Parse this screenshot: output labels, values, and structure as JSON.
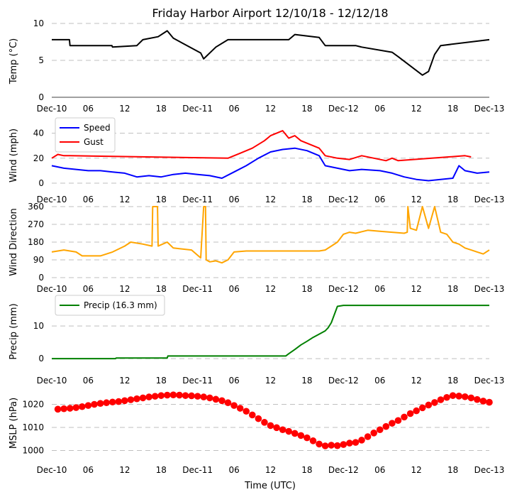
{
  "chart_data": [
    {
      "type": "line",
      "title": "Friday Harbor Airport 12/10/18 - 12/12/18",
      "ylabel": "Temp (°C)",
      "ylim": [
        0,
        10
      ],
      "yticks": [
        "0",
        "5",
        "10"
      ],
      "xtick_labels": [
        "Dec-10",
        "06",
        "12",
        "18",
        "Dec-11",
        "06",
        "12",
        "18",
        "Dec-12",
        "06",
        "12",
        "18",
        "Dec-13"
      ],
      "series": [
        {
          "name": "Temp",
          "color": "#000000",
          "x": [
            0,
            2.9,
            3,
            9.9,
            10,
            14,
            15,
            17.5,
            19,
            20,
            24.5,
            25,
            27,
            29,
            30,
            39,
            40,
            44,
            45,
            50,
            51,
            56,
            57,
            61,
            62,
            63,
            64,
            72
          ],
          "y": [
            7.8,
            7.8,
            7,
            7,
            6.8,
            7,
            7.8,
            8.2,
            9,
            8,
            6,
            5.2,
            6.8,
            7.8,
            7.8,
            7.8,
            8.5,
            8.1,
            7,
            7,
            6.8,
            6.1,
            5.5,
            3,
            3.5,
            5.8,
            7,
            7.8
          ]
        }
      ]
    },
    {
      "type": "line",
      "ylabel": "Wind (mph)",
      "ylim": [
        0,
        50
      ],
      "yticks": [
        "0",
        "20",
        "40"
      ],
      "xtick_labels": [
        "Dec-10",
        "06",
        "12",
        "18",
        "Dec-11",
        "06",
        "12",
        "18",
        "Dec-12",
        "06",
        "12",
        "18",
        "Dec-13"
      ],
      "legend": "top-left",
      "series": [
        {
          "name": "Speed",
          "color": "#0000ff",
          "x": [
            0,
            2,
            4,
            6,
            8,
            10,
            12,
            14,
            16,
            18,
            20,
            22,
            24,
            26,
            28,
            30,
            32,
            34,
            36,
            38,
            40,
            42,
            44,
            45,
            47,
            49,
            51,
            54,
            56,
            58,
            60,
            62,
            64,
            66,
            67,
            68,
            70,
            72
          ],
          "y": [
            14,
            12,
            11,
            10,
            10,
            9,
            8,
            5,
            6,
            5,
            7,
            8,
            7,
            6,
            4,
            9,
            14,
            20,
            25,
            27,
            28,
            26,
            22,
            14,
            12,
            10,
            11,
            10,
            8,
            5,
            3,
            2,
            3,
            4,
            14,
            10,
            8,
            9
          ]
        },
        {
          "name": "Gust",
          "color": "#ff0000",
          "x": [
            0,
            1,
            2,
            3,
            29,
            31,
            33,
            35,
            36,
            37,
            38,
            39,
            40,
            41,
            42,
            43,
            44,
            45,
            47,
            49,
            51,
            53,
            55,
            56,
            57,
            68,
            69
          ],
          "y": [
            20,
            23,
            22,
            22,
            20,
            24,
            28,
            34,
            38,
            40,
            42,
            36,
            38,
            34,
            32,
            30,
            28,
            22,
            20,
            19,
            22,
            20,
            18,
            20,
            18,
            22,
            21
          ]
        }
      ]
    },
    {
      "type": "line",
      "ylabel": "Wind Direction",
      "ylim": [
        0,
        360
      ],
      "yticks": [
        "0",
        "90",
        "180",
        "270",
        "360"
      ],
      "xtick_labels": [
        "Dec-10",
        "06",
        "12",
        "18",
        "Dec-11",
        "06",
        "12",
        "18",
        "Dec-12",
        "06",
        "12",
        "18",
        "Dec-13"
      ],
      "series": [
        {
          "name": "Direction",
          "color": "#ffa500",
          "x": [
            0,
            2,
            4,
            5,
            8,
            10,
            12,
            13,
            15,
            16.5,
            16.6,
            17.4,
            17.5,
            19,
            20,
            23,
            24.5,
            25,
            25.3,
            25.4,
            26,
            27,
            28,
            29,
            30,
            32,
            35,
            40,
            44,
            45,
            46,
            47,
            48,
            49,
            50,
            52,
            54,
            56,
            58,
            58.5,
            58.6,
            59,
            60,
            61,
            62,
            63,
            64,
            65,
            66,
            67,
            68,
            69,
            70,
            71,
            72
          ],
          "y": [
            130,
            140,
            130,
            110,
            110,
            130,
            160,
            180,
            170,
            160,
            360,
            360,
            160,
            180,
            150,
            140,
            100,
            360,
            360,
            90,
            80,
            85,
            75,
            90,
            130,
            135,
            135,
            135,
            135,
            140,
            160,
            180,
            220,
            230,
            225,
            240,
            235,
            230,
            225,
            230,
            360,
            250,
            240,
            360,
            250,
            360,
            230,
            220,
            180,
            170,
            150,
            140,
            130,
            120,
            140
          ]
        }
      ]
    },
    {
      "type": "line",
      "ylabel": "Precip (mm)",
      "ylim": [
        -1.5,
        18.5
      ],
      "yticks": [
        "0",
        "10"
      ],
      "xtick_labels": [
        "Dec-10",
        "06",
        "12",
        "18",
        "Dec-11",
        "06",
        "12",
        "18",
        "Dec-12",
        "06",
        "12",
        "18",
        "Dec-13"
      ],
      "legend": "top-left",
      "series": [
        {
          "name": "Precip (16.3 mm)",
          "color": "#008000",
          "x": [
            0,
            10.5,
            10.6,
            19,
            19.1,
            38.5,
            39,
            40,
            41,
            42,
            43,
            44,
            45,
            45.5,
            46,
            47,
            48,
            72
          ],
          "y": [
            0,
            0,
            0.2,
            0.2,
            0.8,
            0.8,
            1.5,
            2.8,
            4.2,
            5.3,
            6.5,
            7.5,
            8.5,
            9.5,
            11,
            16,
            16.3,
            16.3
          ]
        }
      ]
    },
    {
      "type": "scatter",
      "ylabel": "MSLP (hPa)",
      "xlabel": "Time (UTC)",
      "ylim": [
        998,
        1026
      ],
      "yticks": [
        "1000",
        "1010",
        "1020"
      ],
      "xtick_labels": [
        "Dec-10",
        "06",
        "12",
        "18",
        "Dec-11",
        "06",
        "12",
        "18",
        "Dec-12",
        "06",
        "12",
        "18",
        "Dec-13"
      ],
      "series": [
        {
          "name": "MSLP",
          "color": "#ff0000",
          "x": [
            1,
            2,
            3,
            4,
            5,
            6,
            7,
            8,
            9,
            10,
            11,
            12,
            13,
            14,
            15,
            16,
            17,
            18,
            19,
            20,
            21,
            22,
            23,
            24,
            25,
            26,
            27,
            28,
            29,
            30,
            31,
            32,
            33,
            34,
            35,
            36,
            37,
            38,
            39,
            40,
            41,
            42,
            43,
            44,
            45,
            46,
            47,
            48,
            49,
            50,
            51,
            52,
            53,
            54,
            55,
            56,
            57,
            58,
            59,
            60,
            61,
            62,
            63,
            64,
            65,
            66,
            67,
            68,
            69,
            70,
            71,
            72
          ],
          "y": [
            1017.9,
            1018.1,
            1018.3,
            1018.6,
            1019.0,
            1019.5,
            1020.0,
            1020.4,
            1020.7,
            1021.0,
            1021.2,
            1021.6,
            1022.0,
            1022.4,
            1022.8,
            1023.2,
            1023.5,
            1023.8,
            1024.0,
            1024.1,
            1024.0,
            1023.8,
            1023.7,
            1023.5,
            1023.2,
            1022.8,
            1022.2,
            1021.6,
            1020.7,
            1019.5,
            1018.3,
            1017.0,
            1015.4,
            1013.8,
            1012.2,
            1010.8,
            1009.9,
            1009.0,
            1008.3,
            1007.4,
            1006.5,
            1005.5,
            1004.2,
            1002.8,
            1002.0,
            1002.3,
            1002.1,
            1002.6,
            1003.2,
            1003.5,
            1004.5,
            1006.0,
            1007.6,
            1009.0,
            1010.4,
            1011.8,
            1013.0,
            1014.5,
            1016.0,
            1017.2,
            1018.5,
            1019.7,
            1020.8,
            1022.0,
            1023.0,
            1023.8,
            1023.6,
            1023.3,
            1022.8,
            1022.1,
            1021.4,
            1020.9
          ]
        }
      ]
    }
  ]
}
